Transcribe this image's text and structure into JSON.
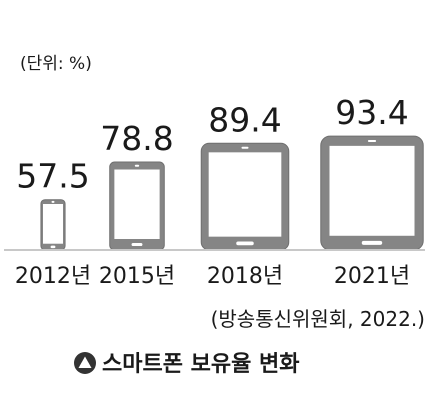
{
  "chart_data": {
    "type": "bar",
    "unit_note": "(단위: %)",
    "categories": [
      "2012년",
      "2015년",
      "2018년",
      "2021년"
    ],
    "values": [
      57.5,
      78.8,
      89.4,
      93.4
    ],
    "value_labels": [
      "57.5",
      "78.8",
      "89.4",
      "93.4"
    ],
    "source": "(방송통신위원회, 2022.)",
    "caption": "스마트폰 보유율 변화",
    "colors": {
      "device_body": "#858585",
      "device_edge": "#6f6f6f",
      "screen": "#ffffff",
      "baseline": "#c8c8c8",
      "text": "#1a1a1a",
      "marker": "#333333"
    },
    "bar_icon": "smartphone-icon",
    "caption_icon": "triangle-in-circle-icon"
  }
}
